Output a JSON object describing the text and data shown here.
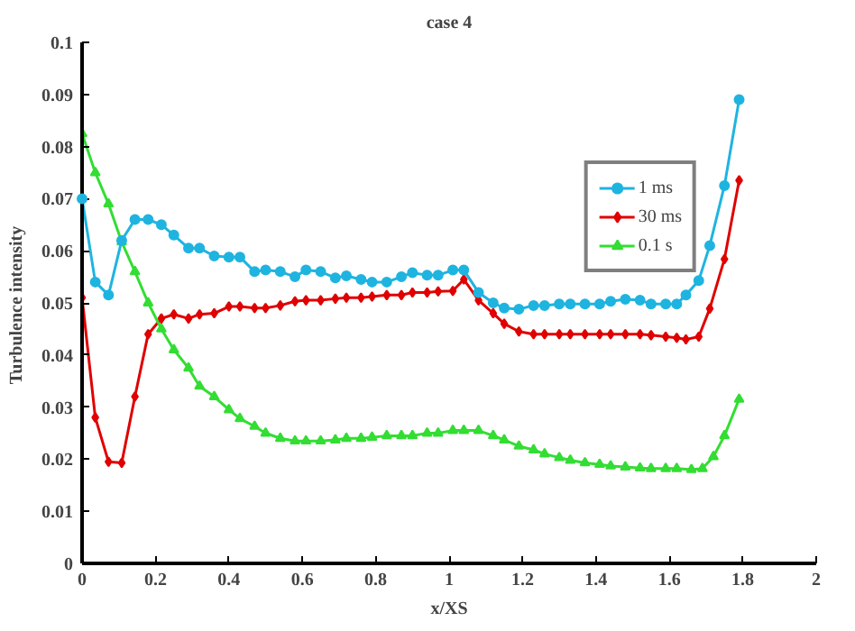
{
  "chart_data": {
    "type": "line",
    "title": "case 4",
    "xlabel": "x/XS",
    "ylabel": "Turbulence  intensity",
    "xlim": [
      0,
      2
    ],
    "xticks": [
      0,
      0.2,
      0.4,
      0.6,
      0.8,
      1,
      1.2,
      1.4,
      1.6,
      1.8,
      2
    ],
    "ylim": [
      0,
      0.1
    ],
    "yticks": [
      0,
      0.01,
      0.02,
      0.03,
      0.04,
      0.05,
      0.06,
      0.07,
      0.08,
      0.09,
      0.1
    ],
    "grid": false,
    "legend": "top right",
    "series": [
      {
        "name": "1 ms",
        "color": "#1fb4e0",
        "marker": "circle",
        "x": [
          0,
          0.036,
          0.072,
          0.108,
          0.144,
          0.18,
          0.216,
          0.25,
          0.29,
          0.32,
          0.36,
          0.4,
          0.43,
          0.47,
          0.5,
          0.54,
          0.58,
          0.61,
          0.65,
          0.69,
          0.72,
          0.76,
          0.79,
          0.83,
          0.87,
          0.9,
          0.94,
          0.97,
          1.01,
          1.04,
          1.08,
          1.12,
          1.15,
          1.19,
          1.23,
          1.26,
          1.3,
          1.33,
          1.37,
          1.41,
          1.44,
          1.48,
          1.52,
          1.55,
          1.59,
          1.62,
          1.645,
          1.68,
          1.71,
          1.75,
          1.79
        ],
        "values": [
          0.07,
          0.054,
          0.0515,
          0.062,
          0.066,
          0.066,
          0.065,
          0.063,
          0.0605,
          0.0605,
          0.059,
          0.0588,
          0.0588,
          0.056,
          0.0563,
          0.056,
          0.055,
          0.0563,
          0.056,
          0.0548,
          0.0552,
          0.0545,
          0.054,
          0.054,
          0.055,
          0.0558,
          0.0553,
          0.0553,
          0.0563,
          0.0563,
          0.052,
          0.05,
          0.049,
          0.0488,
          0.0495,
          0.0495,
          0.0498,
          0.0498,
          0.0498,
          0.0498,
          0.0503,
          0.0507,
          0.0505,
          0.0498,
          0.0498,
          0.0498,
          0.0515,
          0.0543,
          0.061,
          0.0725,
          0.089
        ]
      },
      {
        "name": "30 ms",
        "color": "#e00000",
        "marker": "diamond",
        "x": [
          0,
          0.036,
          0.072,
          0.108,
          0.144,
          0.18,
          0.216,
          0.25,
          0.29,
          0.32,
          0.36,
          0.4,
          0.43,
          0.47,
          0.5,
          0.54,
          0.58,
          0.61,
          0.65,
          0.69,
          0.72,
          0.76,
          0.79,
          0.83,
          0.87,
          0.9,
          0.94,
          0.97,
          1.01,
          1.04,
          1.08,
          1.12,
          1.15,
          1.19,
          1.23,
          1.26,
          1.3,
          1.33,
          1.37,
          1.41,
          1.44,
          1.48,
          1.52,
          1.55,
          1.59,
          1.62,
          1.645,
          1.68,
          1.71,
          1.75,
          1.79
        ],
        "values": [
          0.051,
          0.028,
          0.0195,
          0.0193,
          0.032,
          0.044,
          0.047,
          0.0478,
          0.047,
          0.0478,
          0.048,
          0.0493,
          0.0493,
          0.049,
          0.049,
          0.0495,
          0.0503,
          0.0505,
          0.0505,
          0.0508,
          0.051,
          0.051,
          0.0512,
          0.0515,
          0.0515,
          0.052,
          0.052,
          0.0522,
          0.0523,
          0.0545,
          0.0505,
          0.048,
          0.046,
          0.0445,
          0.044,
          0.044,
          0.044,
          0.044,
          0.044,
          0.044,
          0.044,
          0.044,
          0.044,
          0.0438,
          0.0435,
          0.0433,
          0.043,
          0.0435,
          0.0489,
          0.0584,
          0.0735
        ]
      },
      {
        "name": "0.1 s",
        "color": "#33dd33",
        "marker": "triangle",
        "x": [
          0,
          0.036,
          0.072,
          0.108,
          0.144,
          0.18,
          0.216,
          0.25,
          0.29,
          0.32,
          0.36,
          0.4,
          0.43,
          0.47,
          0.5,
          0.54,
          0.58,
          0.61,
          0.65,
          0.69,
          0.72,
          0.76,
          0.79,
          0.83,
          0.87,
          0.9,
          0.94,
          0.97,
          1.01,
          1.04,
          1.08,
          1.12,
          1.15,
          1.19,
          1.23,
          1.26,
          1.3,
          1.33,
          1.37,
          1.41,
          1.44,
          1.48,
          1.52,
          1.55,
          1.59,
          1.62,
          1.66,
          1.69,
          1.72,
          1.75,
          1.79
        ],
        "values": [
          0.0825,
          0.075,
          0.069,
          0.0617,
          0.056,
          0.05,
          0.045,
          0.041,
          0.0375,
          0.034,
          0.032,
          0.0295,
          0.0278,
          0.0263,
          0.025,
          0.024,
          0.0235,
          0.0235,
          0.0235,
          0.0237,
          0.024,
          0.024,
          0.0242,
          0.0245,
          0.0245,
          0.0245,
          0.025,
          0.025,
          0.0255,
          0.0255,
          0.0255,
          0.0245,
          0.0237,
          0.0225,
          0.0218,
          0.021,
          0.0203,
          0.0198,
          0.0193,
          0.019,
          0.0187,
          0.0185,
          0.0183,
          0.0182,
          0.0182,
          0.0182,
          0.018,
          0.0182,
          0.0205,
          0.0245,
          0.0315
        ]
      }
    ]
  }
}
